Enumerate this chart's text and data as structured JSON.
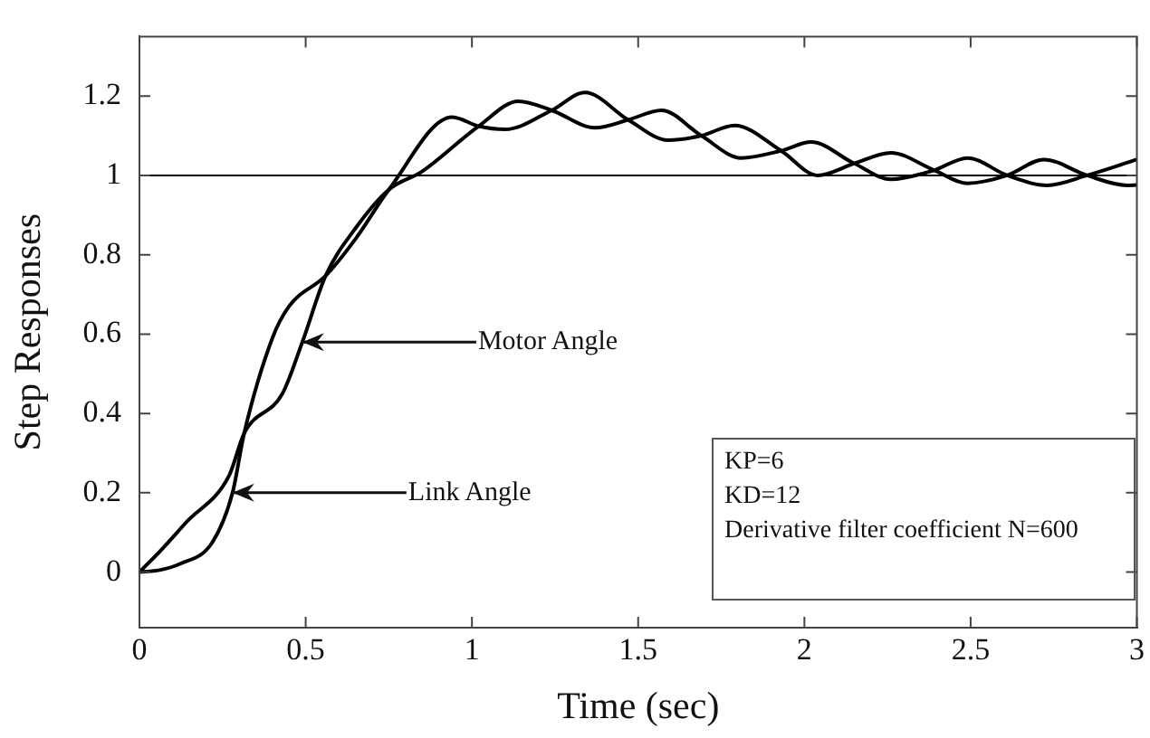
{
  "chart_data": {
    "type": "line",
    "xlabel": "Time (sec)",
    "ylabel": "Step Responses",
    "xlim": [
      0,
      3
    ],
    "xticks": [
      0,
      0.5,
      1,
      1.5,
      2,
      2.5,
      3
    ],
    "ylim": [
      -0.14,
      1.35
    ],
    "yticks": [
      0,
      0.2,
      0.4,
      0.6,
      0.8,
      1,
      1.2
    ],
    "grid": false,
    "legend": false,
    "marker": "none",
    "line_style": "solid",
    "series": [
      {
        "color": "#000000",
        "x": [
          0,
          0.07,
          0.14,
          0.27,
          0.315,
          0.43,
          0.49,
          0.56,
          0.65,
          0.75,
          0.85,
          1.02,
          1.14,
          1.24,
          1.37,
          1.47,
          1.57,
          1.69,
          1.81,
          1.93,
          2.02,
          2.15,
          2.26,
          2.39,
          2.49,
          2.61,
          2.73,
          2.85,
          3.0
        ],
        "values": [
          0,
          0.06,
          0.125,
          0.244,
          0.35,
          0.45,
          0.58,
          0.747,
          0.867,
          0.964,
          1.01,
          1.124,
          1.187,
          1.164,
          1.12,
          1.14,
          1.164,
          1.1,
          1.044,
          1.062,
          1.084,
          1.03,
          0.99,
          1.013,
          1.044,
          1.0,
          0.975,
          1.0,
          1.04
        ]
      },
      {
        "color": "#000000",
        "x": [
          0,
          0.06,
          0.12,
          0.22,
          0.28,
          0.315,
          0.4,
          0.45,
          0.56,
          0.65,
          0.75,
          0.94,
          1.02,
          1.1,
          1.24,
          1.34,
          1.47,
          1.59,
          1.69,
          1.79,
          1.93,
          2.04,
          2.15,
          2.26,
          2.39,
          2.49,
          2.61,
          2.72,
          2.85,
          2.97,
          3.0
        ],
        "values": [
          0,
          0.005,
          0.02,
          0.076,
          0.2,
          0.35,
          0.59,
          0.67,
          0.747,
          0.84,
          0.964,
          1.147,
          1.124,
          1.116,
          1.164,
          1.209,
          1.14,
          1.089,
          1.1,
          1.126,
          1.062,
          1.0,
          1.03,
          1.057,
          1.013,
          0.98,
          1.0,
          1.04,
          1.0,
          0.975,
          0.976
        ]
      }
    ],
    "ref_lines": [
      {
        "axis": "y",
        "value": 1,
        "color": "#000000"
      }
    ],
    "annotations": [
      {
        "text": "Motor Angle",
        "x": 0.49,
        "y": 0.58
      },
      {
        "text": "Link Angle",
        "x": 0.28,
        "y": 0.2
      },
      "KP=6",
      "KD=12",
      "Derivative filter coefficient N=600"
    ]
  }
}
